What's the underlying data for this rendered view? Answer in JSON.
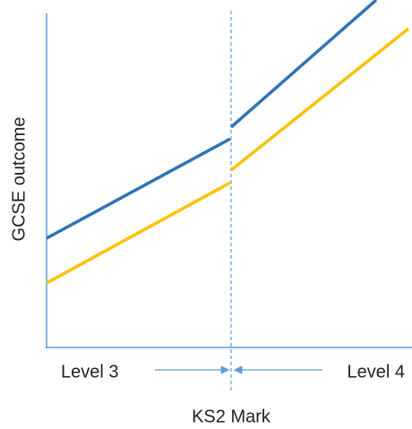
{
  "axes": {
    "y_label": "GCSE outcome",
    "x_label": "KS2 Mark"
  },
  "regions": {
    "left": "Level 3",
    "right": "Level 4"
  }
}
